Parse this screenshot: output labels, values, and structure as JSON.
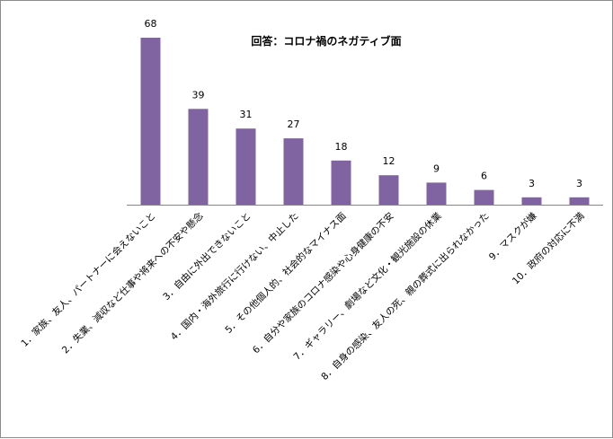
{
  "chart_data": {
    "type": "bar",
    "title": "回答：コロナ禍のネガティブ面",
    "categories": [
      "1．家族、友人、パートナーに会えないこと",
      "2．失業、減収など仕事や将来への不安や懸念",
      "3．自由に外出できないこと",
      "4．国内・海外旅行に行けない、中止した",
      "5．その他個人的、社会的なマイナス面",
      "6．自分や家族のコロナ感染や心身健康の不安",
      "7．ギャラリー、劇場など文化・観光施設の休業",
      "8．自身の感染、友人の死、親の葬式に出られなかった",
      "9．マスクが嫌",
      "10．政府の対応に不満"
    ],
    "values": [
      68,
      39,
      31,
      27,
      18,
      12,
      9,
      6,
      3,
      3
    ],
    "ylim": [
      0,
      70
    ],
    "grid": false,
    "legend": "none",
    "bar_color": "#8064a2",
    "axis_color": "#868686"
  }
}
